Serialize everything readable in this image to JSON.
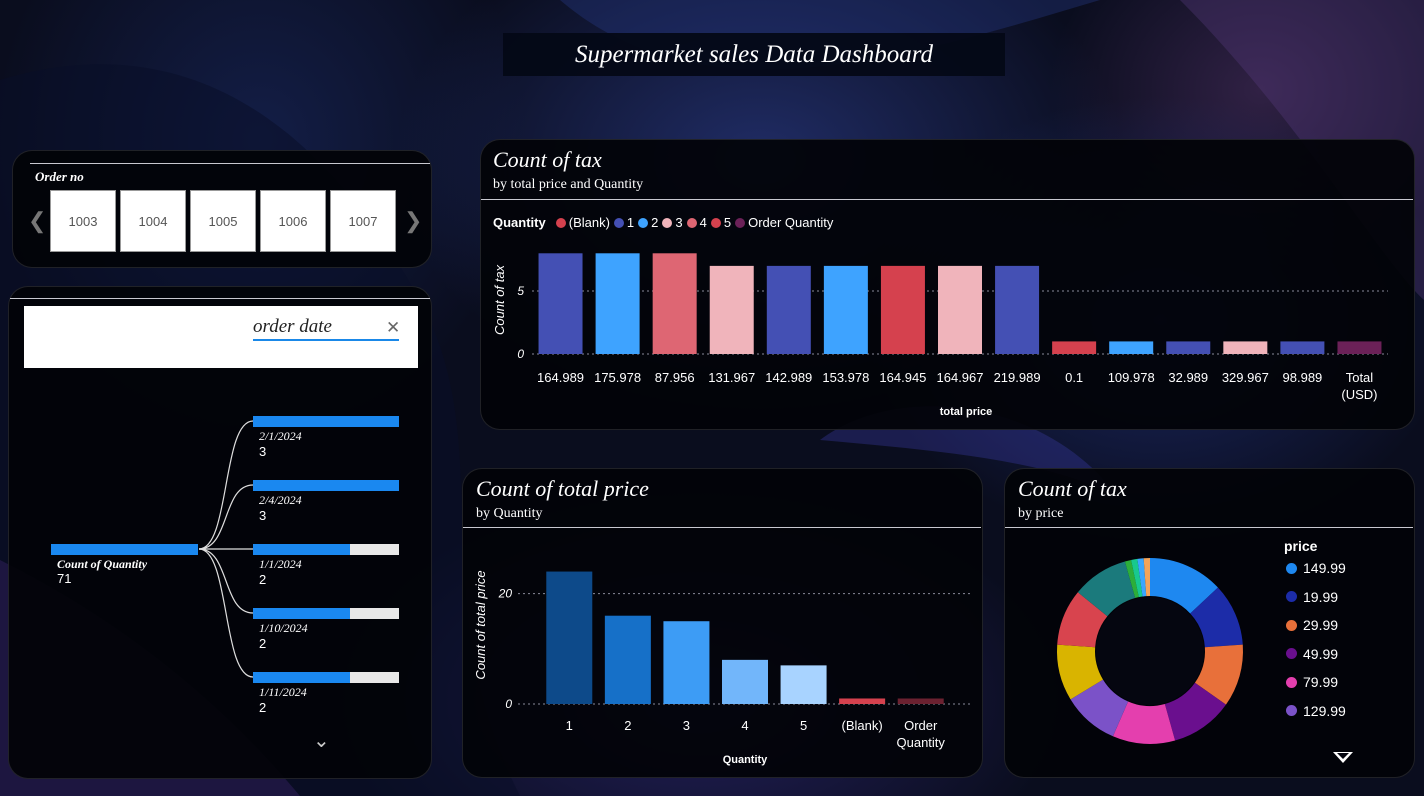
{
  "dashboard": {
    "title": "Supermarket sales Data  Dashboard"
  },
  "slicer": {
    "label": "Order no",
    "items": [
      "1003",
      "1004",
      "1005",
      "1006",
      "1007"
    ]
  },
  "decomposition": {
    "search_text": "order date",
    "root_label": "Count of Quantity",
    "root_value": "71",
    "nodes": [
      {
        "label": "2/1/2024",
        "value": "3",
        "fraction": 1.0
      },
      {
        "label": "2/4/2024",
        "value": "3",
        "fraction": 1.0
      },
      {
        "label": "1/1/2024",
        "value": "2",
        "fraction": 0.667
      },
      {
        "label": "1/10/2024",
        "value": "2",
        "fraction": 0.667
      },
      {
        "label": "1/11/2024",
        "value": "2",
        "fraction": 0.667
      }
    ]
  },
  "chart1": {
    "title": "Count of tax",
    "subtitle": "by total price and Quantity",
    "legend_title": "Quantity",
    "legend": [
      {
        "name": "(Blank)",
        "color": "#d5414e"
      },
      {
        "name": "1",
        "color": "#4450b4"
      },
      {
        "name": "2",
        "color": "#3ea3ff"
      },
      {
        "name": "3",
        "color": "#f0b4bb"
      },
      {
        "name": "4",
        "color": "#de6673"
      },
      {
        "name": "5",
        "color": "#d5414e"
      },
      {
        "name": "Order Quantity",
        "color": "#6b2158"
      }
    ]
  },
  "chart2": {
    "title": "Count of total price",
    "subtitle": "by Quantity"
  },
  "chart3": {
    "title": "Count of tax",
    "subtitle": "by price",
    "legend_title": "price",
    "legend": [
      {
        "name": "149.99",
        "color": "#1e88f0"
      },
      {
        "name": "19.99",
        "color": "#1c2ca8"
      },
      {
        "name": "29.99",
        "color": "#e8703a"
      },
      {
        "name": "49.99",
        "color": "#6a0f8e"
      },
      {
        "name": "79.99",
        "color": "#e43fae"
      },
      {
        "name": "129.99",
        "color": "#7b52c8"
      }
    ]
  },
  "chart_data": [
    {
      "type": "bar",
      "title": "Count of tax",
      "subtitle": "by total price and Quantity",
      "xlabel": "total price",
      "ylabel": "Count of tax",
      "yticks": [
        0,
        5
      ],
      "ylim": [
        0,
        8.5
      ],
      "grid": true,
      "legend_position": "top-left",
      "categories": [
        "164.989",
        "175.978",
        "87.956",
        "131.967",
        "142.989",
        "153.978",
        "164.945",
        "164.967",
        "219.989",
        "0.1",
        "109.978",
        "32.989",
        "329.967",
        "98.989",
        "Total (USD)"
      ],
      "values": [
        8,
        8,
        8,
        7,
        7,
        7,
        7,
        7,
        7,
        1,
        1,
        1,
        1,
        1,
        1
      ],
      "bar_colors": [
        "#4450b4",
        "#3ea3ff",
        "#de6673",
        "#f0b4bb",
        "#4450b4",
        "#3ea3ff",
        "#d5414e",
        "#f0b4bb",
        "#4450b4",
        "#d5414e",
        "#3ea3ff",
        "#4450b4",
        "#f0b4bb",
        "#4450b4",
        "#6b2158"
      ]
    },
    {
      "type": "bar",
      "title": "Count of total price",
      "subtitle": "by Quantity",
      "xlabel": "Quantity",
      "ylabel": "Count of total price",
      "yticks": [
        0,
        20
      ],
      "ylim": [
        0,
        27
      ],
      "grid": true,
      "categories": [
        "1",
        "2",
        "3",
        "4",
        "5",
        "(Blank)",
        "Order Quantity"
      ],
      "values": [
        24,
        16,
        15,
        8,
        7,
        1,
        1
      ],
      "bar_colors": [
        "#0d4a8a",
        "#1670c8",
        "#3d9cf5",
        "#72b6fa",
        "#a8d3ff",
        "#d5414e",
        "#6b2130"
      ]
    },
    {
      "type": "pie",
      "title": "Count of tax",
      "subtitle": "by price",
      "legend_title": "price",
      "legend_position": "right",
      "categories": [
        "149.99",
        "19.99",
        "29.99",
        "49.99",
        "79.99",
        "129.99",
        "",
        "",
        "",
        "",
        "",
        "",
        ""
      ],
      "values": [
        12,
        10,
        10,
        10,
        10,
        9,
        9,
        9,
        9,
        1,
        1,
        1,
        1
      ],
      "colors": [
        "#1e88f0",
        "#1c2ca8",
        "#e8703a",
        "#6a0f8e",
        "#e43fae",
        "#7b52c8",
        "#d9b400",
        "#d8444e",
        "#1b7a7c",
        "#2cae3a",
        "#18c98e",
        "#3aa6ff",
        "#f4a45a"
      ]
    }
  ]
}
